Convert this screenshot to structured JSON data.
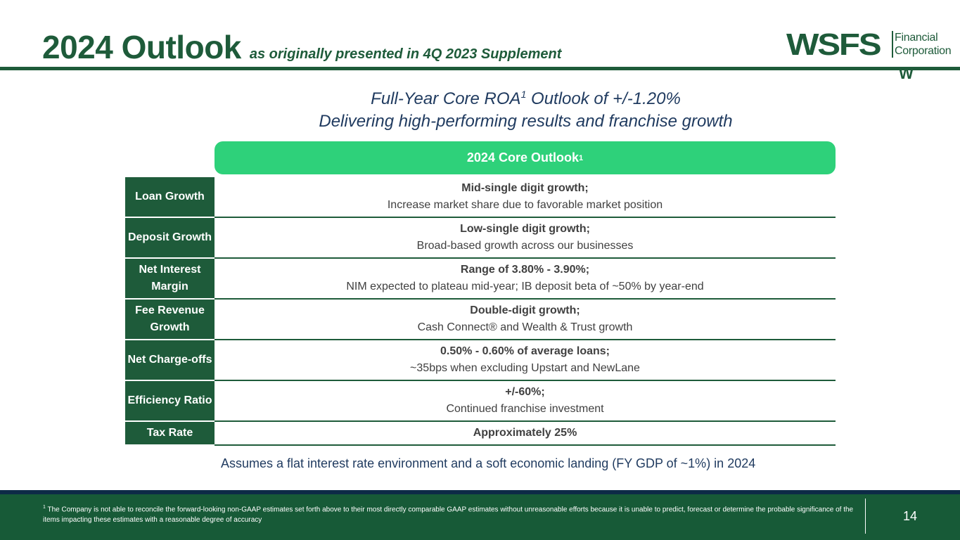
{
  "title": {
    "main": "2024 Outlook",
    "sub": "as originally presented in 4Q 2023 Supplement"
  },
  "logo": {
    "mark": "WSFS",
    "line1": "Financial",
    "line2": "Corporation",
    "emblem": "W"
  },
  "headline": {
    "line1_a": "Full-Year Core ROA",
    "line1_sup": "1",
    "line1_b": " Outlook of +/-1.20%",
    "line2": "Delivering high-performing results and franchise growth"
  },
  "outlook_header": {
    "label": "2024 Core Outlook",
    "sup": "1"
  },
  "rows": [
    {
      "label": "Loan Growth",
      "bold": "Mid-single digit growth;",
      "detail": "Increase market share due to favorable market position"
    },
    {
      "label": "Deposit Growth",
      "bold": "Low-single digit growth;",
      "detail": "Broad-based growth across our businesses"
    },
    {
      "label": "Net Interest Margin",
      "bold": "Range of 3.80% - 3.90%;",
      "detail": "NIM expected to plateau mid-year; IB deposit beta of ~50% by year-end"
    },
    {
      "label": "Fee Revenue Growth",
      "bold": "Double-digit growth;",
      "detail": "Cash Connect® and Wealth & Trust growth"
    },
    {
      "label": "Net Charge-offs",
      "bold": "0.50% - 0.60% of average loans;",
      "detail": "~35bps when excluding Upstart and NewLane"
    },
    {
      "label": "Efficiency Ratio",
      "bold": "+/-60%;",
      "detail": "Continued franchise investment"
    },
    {
      "label": "Tax Rate",
      "bold": "Approximately 25%",
      "detail": ""
    }
  ],
  "assumption": "Assumes a flat interest rate environment and a soft economic landing (FY GDP of ~1%) in 2024",
  "footer": {
    "footnote_sup": "1",
    "footnote": " The Company is not able to reconcile the forward-looking non-GAAP estimates set forth above to their most directly comparable GAAP estimates without unreasonable efforts because it is unable to predict, forecast or determine the probable significance of the items impacting these estimates with a reasonable degree of accuracy",
    "page_number": "14"
  }
}
